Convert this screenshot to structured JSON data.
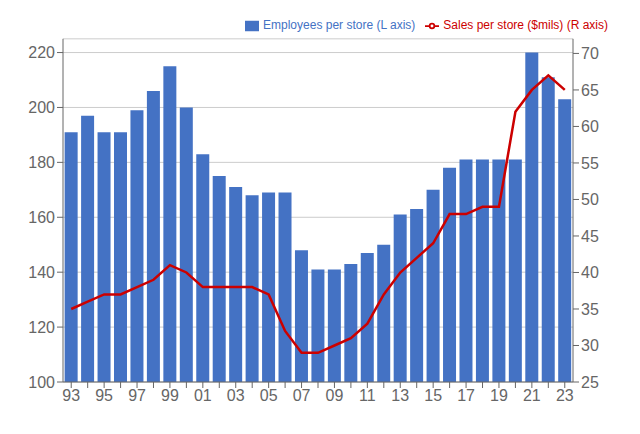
{
  "chart_data": {
    "type": "bar",
    "categories": [
      "93",
      null,
      "95",
      null,
      "97",
      null,
      "99",
      null,
      "01",
      null,
      "03",
      null,
      "05",
      null,
      "07",
      null,
      "09",
      null,
      "11",
      null,
      "13",
      null,
      "15",
      null,
      "17",
      null,
      "19",
      null,
      "21",
      null,
      "23"
    ],
    "series": [
      {
        "name": "Employees per store (L axis)",
        "type": "bar",
        "color": "#4472C4",
        "values": [
          191,
          197,
          191,
          191,
          199,
          206,
          215,
          200,
          183,
          175,
          171,
          168,
          169,
          169,
          148,
          141,
          141,
          143,
          147,
          150,
          161,
          163,
          170,
          178,
          181,
          181,
          181,
          181,
          220,
          211,
          203
        ]
      },
      {
        "name": "Sales per store ($mils) (R axis)",
        "type": "line",
        "color": "#CC0000",
        "axis": "y2",
        "values": [
          35,
          36,
          37,
          37,
          38,
          39,
          41,
          40,
          38,
          38,
          38,
          38,
          37,
          32,
          29,
          29,
          30,
          31,
          33,
          37,
          40,
          42,
          44,
          48,
          48,
          49,
          49,
          62,
          65,
          67,
          65
        ]
      }
    ],
    "ylim": [
      100,
      225
    ],
    "yticks": [
      100,
      120,
      140,
      160,
      180,
      200,
      220
    ],
    "y2lim": [
      25,
      72
    ],
    "y2ticks": [
      25,
      30,
      35,
      40,
      45,
      50,
      55,
      60,
      65,
      70
    ],
    "grid": true,
    "legend": "upper right"
  }
}
